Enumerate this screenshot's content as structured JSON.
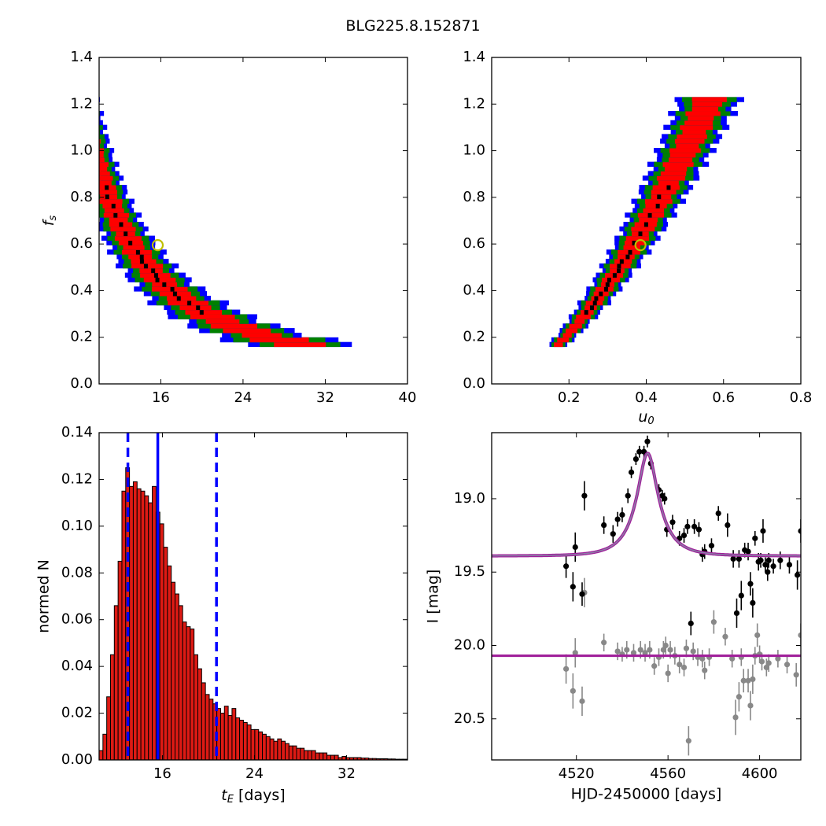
{
  "figure": {
    "title": "BLG225.8.152871"
  },
  "colors": {
    "sigma1": "#ff0000",
    "sigma2": "#008000",
    "sigma3": "#0000ff",
    "best": "#000000",
    "marker_edge": "#bfbf00",
    "hist_bar": "#dd1a14",
    "vline": "#0000ff",
    "model": "#a0209a",
    "model_core": "#8a7fa6",
    "data_black": "#000000",
    "data_gray": "#888888"
  },
  "chart_data": [
    {
      "id": "fs-vs-tE",
      "type": "heatmap",
      "xlabel": "",
      "ylabel": "f_s",
      "xlim": [
        10,
        40
      ],
      "ylim": [
        0,
        1.4
      ],
      "xticks": [
        16,
        24,
        32,
        40
      ],
      "yticks": [
        0.0,
        0.2,
        0.4,
        0.6,
        0.8,
        1.0,
        1.2,
        1.4
      ],
      "relation": "x = 9.5 / y^0.64",
      "y_range": [
        0.16,
        1.23
      ],
      "band_widths_fraction": {
        "sigma1": 0.09,
        "sigma2": 0.14,
        "sigma3": 0.18
      },
      "best_fit_marker": {
        "x": 15.7,
        "y": 0.595
      }
    },
    {
      "id": "fs-vs-u0",
      "type": "heatmap",
      "xlabel": "u_0",
      "ylabel": "",
      "xlim": [
        0,
        0.8
      ],
      "ylim": [
        0,
        1.4
      ],
      "xticks": [
        0.2,
        0.4,
        0.6,
        0.8
      ],
      "yticks": [
        0.0,
        0.2,
        0.4,
        0.6,
        0.8,
        1.0,
        1.2,
        1.4
      ],
      "relation": "x = 0.5 * y^0.6",
      "y_range": [
        0.16,
        1.23
      ],
      "band_widths_fraction": {
        "sigma1": 0.07,
        "sigma2": 0.11,
        "sigma3": 0.14
      },
      "best_fit_marker": {
        "x": 0.385,
        "y": 0.595
      }
    },
    {
      "id": "tE-histogram",
      "type": "bar",
      "xlabel": "t_E [days]",
      "ylabel": "normed N",
      "xlim": [
        10.5,
        37.3
      ],
      "ylim": [
        0,
        0.14
      ],
      "xticks": [
        16,
        24,
        32
      ],
      "yticks": [
        0.0,
        0.02,
        0.04,
        0.06,
        0.08,
        0.1,
        0.12,
        0.14
      ],
      "bin_start": 10.5,
      "bin_width": 0.33,
      "values": [
        0.004,
        0.011,
        0.027,
        0.045,
        0.066,
        0.085,
        0.115,
        0.125,
        0.117,
        0.119,
        0.116,
        0.115,
        0.113,
        0.11,
        0.117,
        0.106,
        0.101,
        0.091,
        0.083,
        0.076,
        0.071,
        0.066,
        0.059,
        0.057,
        0.056,
        0.045,
        0.039,
        0.033,
        0.028,
        0.026,
        0.024,
        0.022,
        0.02,
        0.023,
        0.019,
        0.022,
        0.018,
        0.017,
        0.016,
        0.015,
        0.013,
        0.013,
        0.012,
        0.011,
        0.01,
        0.009,
        0.008,
        0.009,
        0.008,
        0.007,
        0.006,
        0.006,
        0.005,
        0.005,
        0.004,
        0.004,
        0.004,
        0.003,
        0.003,
        0.003,
        0.002,
        0.002,
        0.002,
        0.001,
        0.0015,
        0.001,
        0.001,
        0.001,
        0.001,
        0.0008,
        0.0008,
        0.0006,
        0.0006,
        0.0005,
        0.0005,
        0.0005,
        0.0004,
        0.0004,
        0.0003,
        0.0003,
        0.0003
      ],
      "vlines": [
        {
          "x": 13.0,
          "style": "dashed"
        },
        {
          "x": 15.6,
          "style": "solid"
        },
        {
          "x": 20.7,
          "style": "dashed"
        }
      ]
    },
    {
      "id": "light-curve",
      "type": "scatter",
      "xlabel": "HJD-2450000 [days]",
      "ylabel": "I [mag]",
      "xlim": [
        4483,
        4618
      ],
      "ylim": [
        20.78,
        18.55
      ],
      "xticks": [
        4520,
        4560,
        4600
      ],
      "yticks": [
        19.0,
        19.5,
        20.0,
        20.5
      ],
      "model": {
        "t0": 4551.1,
        "baseline": 19.39,
        "amplitude": 0.7,
        "tE": 15.6,
        "u0": 0.385
      },
      "model_baseline_lower": 20.07,
      "series": [
        {
          "color": "black",
          "points": [
            [
              4515.5,
              19.46,
              0.08
            ],
            [
              4518.5,
              19.6,
              0.1
            ],
            [
              4519.5,
              19.33,
              0.1
            ],
            [
              4522.5,
              19.65,
              0.08
            ],
            [
              4523.5,
              18.98,
              0.1
            ],
            [
              4532,
              19.18,
              0.06
            ],
            [
              4536,
              19.24,
              0.06
            ],
            [
              4538,
              19.14,
              0.05
            ],
            [
              4540,
              19.11,
              0.05
            ],
            [
              4542.5,
              18.98,
              0.05
            ],
            [
              4544,
              18.82,
              0.04
            ],
            [
              4546,
              18.73,
              0.04
            ],
            [
              4547.5,
              18.68,
              0.04
            ],
            [
              4549.5,
              18.68,
              0.04
            ],
            [
              4551,
              18.61,
              0.04
            ],
            [
              4552.5,
              18.76,
              0.04
            ],
            [
              4556,
              18.94,
              0.04
            ],
            [
              4557.5,
              18.98,
              0.04
            ],
            [
              4558.5,
              19.0,
              0.04
            ],
            [
              4559.5,
              19.21,
              0.05
            ],
            [
              4562,
              19.16,
              0.05
            ],
            [
              4565,
              19.27,
              0.05
            ],
            [
              4567,
              19.25,
              0.05
            ],
            [
              4568.5,
              19.19,
              0.05
            ],
            [
              4570,
              19.85,
              0.08
            ],
            [
              4571.5,
              19.19,
              0.05
            ],
            [
              4573.5,
              19.21,
              0.05
            ],
            [
              4575,
              19.38,
              0.05
            ],
            [
              4576,
              19.36,
              0.05
            ],
            [
              4579,
              19.32,
              0.05
            ],
            [
              4582,
              19.1,
              0.05
            ],
            [
              4586,
              19.18,
              0.08
            ],
            [
              4588.5,
              19.41,
              0.06
            ],
            [
              4590,
              19.78,
              0.1
            ],
            [
              4591,
              19.41,
              0.06
            ],
            [
              4592,
              19.66,
              0.1
            ],
            [
              4593.5,
              19.35,
              0.05
            ],
            [
              4595,
              19.36,
              0.06
            ],
            [
              4596,
              19.58,
              0.08
            ],
            [
              4597,
              19.71,
              0.1
            ],
            [
              4598,
              19.27,
              0.05
            ],
            [
              4599.5,
              19.43,
              0.06
            ],
            [
              4600.5,
              19.42,
              0.05
            ],
            [
              4601.5,
              19.22,
              0.08
            ],
            [
              4602.5,
              19.45,
              0.05
            ],
            [
              4603.5,
              19.5,
              0.06
            ],
            [
              4604,
              19.42,
              0.05
            ],
            [
              4606,
              19.46,
              0.05
            ],
            [
              4609,
              19.42,
              0.06
            ],
            [
              4613,
              19.45,
              0.06
            ],
            [
              4616.5,
              19.52,
              0.1
            ],
            [
              4618,
              19.22,
              0.08
            ]
          ]
        },
        {
          "color": "gray",
          "points": [
            [
              4515.5,
              20.16,
              0.1
            ],
            [
              4518.5,
              20.31,
              0.12
            ],
            [
              4519.5,
              20.05,
              0.1
            ],
            [
              4522.5,
              20.38,
              0.1
            ],
            [
              4523.5,
              19.64,
              0.1
            ],
            [
              4532,
              19.98,
              0.06
            ],
            [
              4538,
              20.04,
              0.06
            ],
            [
              4540,
              20.06,
              0.05
            ],
            [
              4542,
              20.03,
              0.06
            ],
            [
              4545,
              20.05,
              0.06
            ],
            [
              4548,
              20.03,
              0.06
            ],
            [
              4550,
              20.05,
              0.06
            ],
            [
              4552,
              20.03,
              0.06
            ],
            [
              4554,
              20.14,
              0.06
            ],
            [
              4556,
              20.08,
              0.06
            ],
            [
              4558,
              20.03,
              0.06
            ],
            [
              4559,
              20.0,
              0.06
            ],
            [
              4560,
              20.19,
              0.06
            ],
            [
              4561,
              20.03,
              0.06
            ],
            [
              4563,
              20.07,
              0.06
            ],
            [
              4565,
              20.13,
              0.06
            ],
            [
              4567,
              20.15,
              0.06
            ],
            [
              4568,
              20.02,
              0.06
            ],
            [
              4569,
              20.65,
              0.1
            ],
            [
              4571,
              20.04,
              0.06
            ],
            [
              4573,
              20.08,
              0.06
            ],
            [
              4575,
              20.09,
              0.06
            ],
            [
              4576,
              20.17,
              0.06
            ],
            [
              4578,
              20.08,
              0.06
            ],
            [
              4580,
              19.84,
              0.08
            ],
            [
              4585,
              19.94,
              0.06
            ],
            [
              4588,
              20.09,
              0.06
            ],
            [
              4589.5,
              20.49,
              0.12
            ],
            [
              4591,
              20.35,
              0.1
            ],
            [
              4592,
              20.08,
              0.06
            ],
            [
              4593,
              20.24,
              0.08
            ],
            [
              4595,
              20.24,
              0.08
            ],
            [
              4596,
              20.41,
              0.1
            ],
            [
              4597,
              20.23,
              0.1
            ],
            [
              4598,
              20.07,
              0.06
            ],
            [
              4599,
              19.93,
              0.08
            ],
            [
              4600,
              20.06,
              0.06
            ],
            [
              4601,
              20.11,
              0.06
            ],
            [
              4603,
              20.15,
              0.06
            ],
            [
              4604,
              20.12,
              0.06
            ],
            [
              4608,
              20.09,
              0.06
            ],
            [
              4612,
              20.13,
              0.06
            ],
            [
              4616,
              20.2,
              0.08
            ],
            [
              4618,
              19.93,
              0.08
            ]
          ]
        }
      ]
    }
  ]
}
